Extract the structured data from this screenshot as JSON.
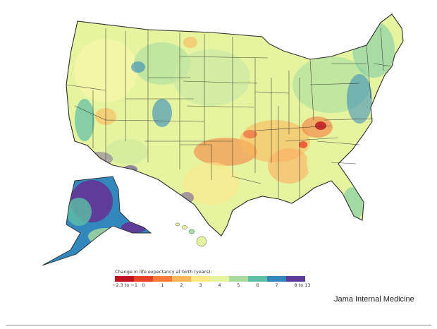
{
  "map": {
    "legend_title": "Change in life expectancy at birth (years):",
    "legend_ticks": [
      "−2.3 to −1",
      "0",
      "1",
      "2",
      "3",
      "4",
      "5",
      "6",
      "7",
      "8 to 13"
    ],
    "legend_colors": [
      "#c1121f",
      "#e8442c",
      "#f57a3b",
      "#fcb65c",
      "#fde68a",
      "#e6f4a0",
      "#a9dc9e",
      "#5dbfa8",
      "#3288bd",
      "#5e3c99"
    ],
    "ocean_color": "#ffffff",
    "state_line_color": "#2b2b2b"
  },
  "source": {
    "label": "Jama Internal Medicine"
  }
}
